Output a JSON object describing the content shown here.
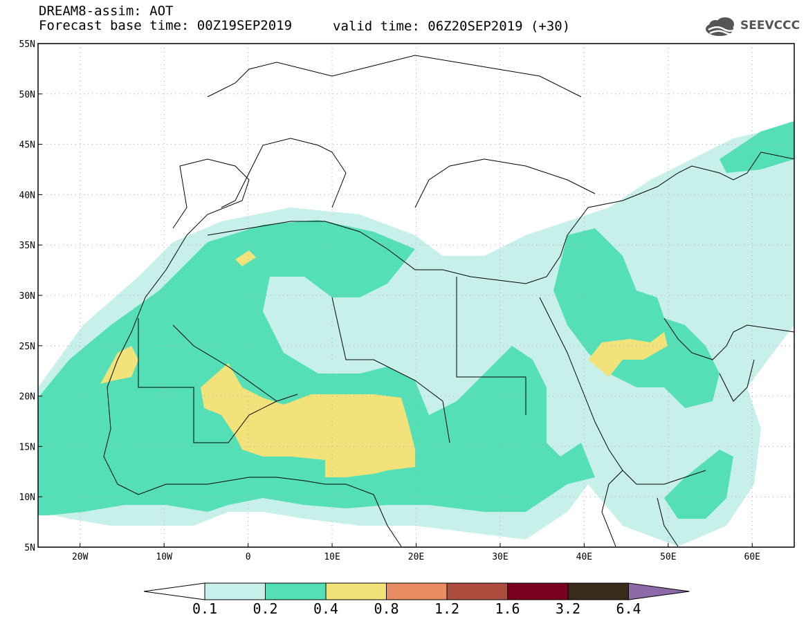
{
  "header": {
    "title": "DREAM8-assim: AOT",
    "base_time": "Forecast base time: 00Z19SEP2019",
    "valid_time": "valid time: 06Z20SEP2019 (+30)",
    "logo_text": "SEEVCCC"
  },
  "map": {
    "lon_range": [
      -25,
      65
    ],
    "lat_range": [
      5,
      55
    ],
    "lat_labels": [
      "55N",
      "50N",
      "45N",
      "40N",
      "35N",
      "30N",
      "25N",
      "20N",
      "15N",
      "10N",
      "5N"
    ],
    "lon_labels": [
      "20W",
      "10W",
      "0",
      "10E",
      "20E",
      "30E",
      "40E",
      "50E",
      "60E"
    ],
    "grid": "dotted"
  },
  "colorbar": {
    "labels": [
      "0.1",
      "0.2",
      "0.4",
      "0.8",
      "1.2",
      "1.6",
      "3.2",
      "6.4"
    ],
    "colors": [
      "#ffffff",
      "#c8f0ea",
      "#55dfb7",
      "#f1e37a",
      "#e98e64",
      "#ad4d3f",
      "#7a0020",
      "#3a2a1a",
      "#8e6aa9"
    ]
  }
}
